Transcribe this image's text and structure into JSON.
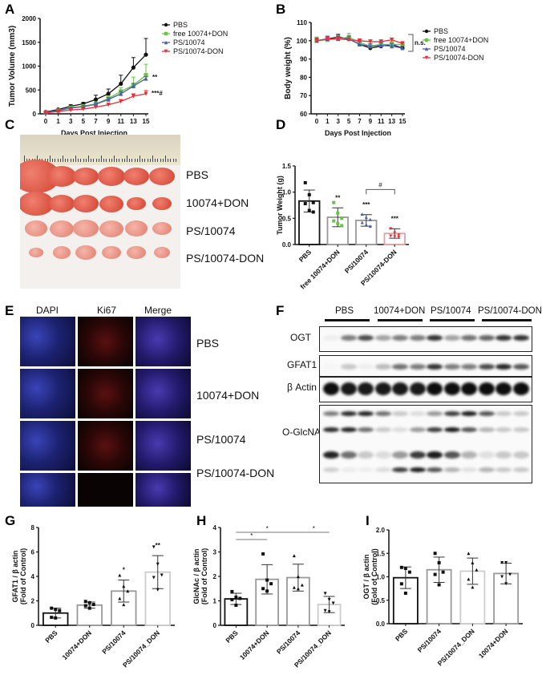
{
  "panels": {
    "A": "A",
    "B": "B",
    "C": "C",
    "D": "D",
    "E": "E",
    "F": "F",
    "G": "G",
    "H": "H",
    "I": "I"
  },
  "photo_rows": [
    "PBS",
    "10074+DON",
    "PS/10074",
    "PS/10074-DON"
  ],
  "micro_cols": [
    "DAPI",
    "Ki67",
    "Merge"
  ],
  "micro_rows": [
    "PBS",
    "10074+DON",
    "PS/10074",
    "PS/10074-DON"
  ],
  "blot": {
    "groups": [
      "PBS",
      "10074+DON",
      "PS/10074",
      "PS/10074-DON"
    ],
    "rows": [
      "OGT",
      "GFAT1",
      "β Actin",
      "O-GlcNAc"
    ]
  },
  "colors": {
    "PBS": "#111111",
    "free": "#6cc04a",
    "PS10074": "#4a5fa8",
    "PSDON": "#e8303a"
  },
  "chart_data": [
    {
      "id": "A",
      "type": "line",
      "x": [
        "0",
        "1",
        "3",
        "5",
        "7",
        "9",
        "11",
        "13",
        "15"
      ],
      "xlabel": "Days Post Injection",
      "ylabel": "Tumor Volume (mm3)",
      "ylim": [
        0,
        2000
      ],
      "yticks": [
        "0",
        "500",
        "1000",
        "1500",
        "2000"
      ],
      "legend": "right",
      "series": [
        {
          "name": "PBS",
          "color": "#111111",
          "marker": "circle",
          "values": [
            40,
            90,
            160,
            210,
            300,
            420,
            630,
            970,
            1240
          ],
          "err": [
            10,
            15,
            30,
            30,
            90,
            100,
            180,
            210,
            340
          ]
        },
        {
          "name": "free 10074+DON",
          "color": "#6cc04a",
          "marker": "square",
          "values": [
            30,
            70,
            130,
            160,
            210,
            320,
            470,
            600,
            810
          ],
          "err": [
            10,
            15,
            25,
            30,
            40,
            60,
            80,
            170,
            230
          ]
        },
        {
          "name": "PS/10074",
          "color": "#4a5fa8",
          "marker": "triangle",
          "values": [
            30,
            70,
            120,
            150,
            200,
            300,
            420,
            580,
            740
          ],
          "err": [
            10,
            15,
            20,
            25,
            30,
            40,
            50,
            60,
            40
          ]
        },
        {
          "name": "PS/10074-DON",
          "color": "#e8303a",
          "marker": "triangle-down",
          "values": [
            20,
            50,
            80,
            100,
            140,
            190,
            260,
            370,
            420
          ],
          "err": [
            8,
            10,
            15,
            20,
            25,
            30,
            40,
            50,
            70
          ]
        }
      ],
      "annotations": [
        "**",
        "***#"
      ]
    },
    {
      "id": "B",
      "type": "line",
      "x": [
        "0",
        "1",
        "3",
        "5",
        "7",
        "9",
        "11",
        "13",
        "15"
      ],
      "xlabel": "Days Post Injection",
      "ylabel": "Body weight (%)",
      "ylim": [
        60,
        110
      ],
      "yticks": [
        "60",
        "70",
        "80",
        "90",
        "100",
        "110"
      ],
      "legend": "right",
      "series": [
        {
          "name": "PBS",
          "color": "#111111",
          "marker": "circle",
          "values": [
            100,
            101,
            102,
            101,
            98,
            96,
            97,
            98,
            96
          ],
          "err": [
            1.5,
            1.5,
            1.5,
            1.5,
            1.5,
            2,
            1.5,
            1.5,
            1.5
          ]
        },
        {
          "name": "free 10074+DON",
          "color": "#6cc04a",
          "marker": "square",
          "values": [
            100,
            100.5,
            101,
            102,
            99,
            97,
            98,
            98,
            98
          ],
          "err": [
            2,
            1.5,
            2,
            2,
            1.5,
            2.5,
            1.5,
            1.5,
            1.5
          ]
        },
        {
          "name": "PS/10074",
          "color": "#4a5fa8",
          "marker": "triangle",
          "values": [
            100,
            101,
            101,
            101,
            98,
            97,
            97.5,
            97,
            96
          ],
          "err": [
            1.5,
            1.5,
            1.5,
            1.5,
            1.5,
            1.5,
            1.5,
            1.5,
            1
          ]
        },
        {
          "name": "PS/10074-DON",
          "color": "#e8303a",
          "marker": "triangle-down",
          "values": [
            100,
            101,
            101,
            100.5,
            100,
            99.5,
            99.5,
            100.5,
            98.5
          ],
          "err": [
            1,
            1,
            1,
            1,
            1,
            1,
            1,
            1,
            1
          ]
        }
      ],
      "annotations": [
        "n.s."
      ]
    },
    {
      "id": "D",
      "type": "bar",
      "categories": [
        "PBS",
        "free 10074+DON",
        "PS/10074",
        "PS/10074-DON"
      ],
      "ylabel": [
        "Tumor Weight  (g)"
      ],
      "ylim": [
        0,
        1.5
      ],
      "yticks": [
        "0.0",
        "0.5",
        "1.0",
        "1.5"
      ],
      "values": [
        0.83,
        0.52,
        0.46,
        0.21
      ],
      "sd": [
        0.21,
        0.18,
        0.11,
        0.09
      ],
      "points": [
        [
          1.18,
          0.95,
          0.8,
          0.78,
          0.65,
          0.62
        ],
        [
          0.8,
          0.6,
          0.5,
          0.45,
          0.4,
          0.36
        ],
        [
          0.58,
          0.52,
          0.48,
          0.42,
          0.38,
          0.35
        ],
        [
          0.3,
          0.22,
          0.18,
          0.16,
          0.15,
          0.14
        ]
      ],
      "edge": [
        "#111111",
        "#999999",
        "#999999",
        "#e2a0a6"
      ],
      "pointColors": [
        "#111111",
        "#6cc04a",
        "#4a5fa8",
        "#e8303a"
      ],
      "sig": [
        "",
        "**",
        "***",
        "***"
      ],
      "brackets": [
        {
          "from": 2,
          "to": 3,
          "label": "#"
        }
      ]
    },
    {
      "id": "G",
      "type": "bar",
      "categories": [
        "PBS",
        "10074+DON",
        "PS/10074",
        "PS/10074_DON"
      ],
      "ylabel": [
        "GFAT1 / β actin",
        "(Fold of  Control)"
      ],
      "ylim": [
        0,
        8
      ],
      "yticks": [
        "0",
        "2",
        "4",
        "6",
        "8"
      ],
      "values": [
        1.0,
        1.65,
        2.8,
        4.35
      ],
      "sd": [
        0.4,
        0.25,
        0.9,
        1.35
      ],
      "points": [
        [
          1.4,
          1.3,
          1.2,
          0.65,
          0.6
        ],
        [
          1.95,
          1.85,
          1.7,
          1.6,
          1.4
        ],
        [
          4.1,
          3.2,
          2.8,
          2.2,
          1.7
        ],
        [
          6.4,
          5.0,
          4.1,
          3.9,
          2.9
        ]
      ],
      "edge": [
        "#111111",
        "#999999",
        "#999999",
        "#cccccc"
      ],
      "pointColors": [
        "#111111",
        "#111111",
        "#111111",
        "#111111"
      ],
      "sig": [
        "",
        "",
        "*",
        "**"
      ],
      "brackets": []
    },
    {
      "id": "H",
      "type": "bar",
      "categories": [
        "PBS",
        "10074+DON",
        "PS/10074",
        "PS/10074_DON"
      ],
      "ylabel": [
        "GlcNAc / β actin",
        "(Fold of  Control)"
      ],
      "ylim": [
        0,
        4
      ],
      "yticks": [
        "0",
        "1",
        "2",
        "3",
        "4"
      ],
      "values": [
        1.08,
        1.88,
        1.95,
        0.85
      ],
      "sd": [
        0.23,
        0.6,
        0.55,
        0.33
      ],
      "points": [
        [
          1.38,
          1.15,
          1.1,
          1.05,
          0.82
        ],
        [
          2.92,
          1.85,
          1.7,
          1.5,
          1.4
        ],
        [
          2.85,
          2.0,
          1.65,
          1.55,
          1.5
        ],
        [
          1.3,
          1.05,
          0.9,
          0.6,
          0.55
        ]
      ],
      "edge": [
        "#111111",
        "#999999",
        "#999999",
        "#cccccc"
      ],
      "pointColors": [
        "#111111",
        "#111111",
        "#111111",
        "#111111"
      ],
      "sig": [
        "",
        "",
        "",
        ""
      ],
      "brackets": [
        {
          "from": 0,
          "to": 1,
          "label": "*",
          "level": 0
        },
        {
          "from": 0,
          "to": 2,
          "label": "*",
          "level": 1
        },
        {
          "from": 2,
          "to": 3,
          "label": "*",
          "level": 1
        }
      ]
    },
    {
      "id": "I",
      "type": "bar",
      "categories": [
        "PBS",
        "PS/10074",
        "PS/10074_DON",
        "10074+DON"
      ],
      "ylabel": [
        "OGT / β actin",
        "(Fold of  Control)"
      ],
      "ylim": [
        0,
        2
      ],
      "yticks": [
        "0.0",
        "0.5",
        "1.0",
        "1.5",
        "2.0"
      ],
      "values": [
        0.98,
        1.15,
        1.12,
        1.07
      ],
      "sd": [
        0.23,
        0.27,
        0.28,
        0.22
      ],
      "points": [
        [
          1.2,
          1.18,
          1.1,
          0.85,
          0.65
        ],
        [
          1.5,
          1.3,
          1.1,
          1.05,
          0.83
        ],
        [
          1.5,
          1.3,
          1.15,
          0.95,
          0.78
        ],
        [
          1.3,
          1.3,
          1.05,
          1.0,
          0.85
        ]
      ],
      "edge": [
        "#111111",
        "#999999",
        "#cccccc",
        "#999999"
      ],
      "pointColors": [
        "#111111",
        "#111111",
        "#111111",
        "#111111"
      ],
      "sig": [
        "",
        "",
        "",
        ""
      ],
      "brackets": []
    }
  ]
}
